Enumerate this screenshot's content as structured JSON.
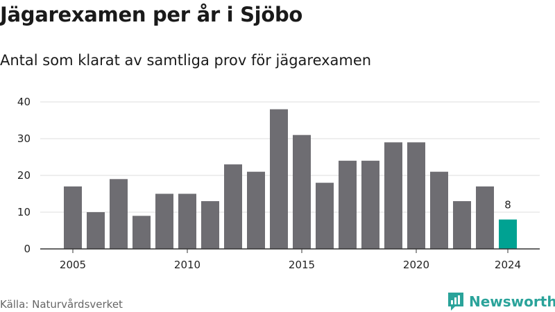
{
  "header": {
    "title": "Jägarexamen per år i Sjöbo",
    "subtitle": "Antal som klarat av samtliga prov för jägarexamen"
  },
  "footer": {
    "source": "Källa: Naturvårdsverket",
    "brand": "Newsworthy",
    "brand_color": "#2aa39a"
  },
  "chart_data": {
    "type": "bar",
    "categories": [
      2005,
      2006,
      2007,
      2008,
      2009,
      2010,
      2011,
      2012,
      2013,
      2014,
      2015,
      2016,
      2017,
      2018,
      2019,
      2020,
      2021,
      2022,
      2023,
      2024
    ],
    "values": [
      17,
      10,
      19,
      9,
      15,
      15,
      13,
      23,
      21,
      38,
      31,
      18,
      24,
      24,
      29,
      29,
      21,
      13,
      17,
      8
    ],
    "ylim": [
      0,
      40
    ],
    "yticks": [
      0,
      10,
      20,
      30,
      40
    ],
    "xticks": [
      2005,
      2010,
      2015,
      2020,
      2024
    ],
    "grid": true,
    "bar_color": "#6e6d72",
    "highlight_color": "#00a292",
    "highlight_category": 2024,
    "data_labels": [
      {
        "category": 2024,
        "text": "8"
      }
    ]
  }
}
